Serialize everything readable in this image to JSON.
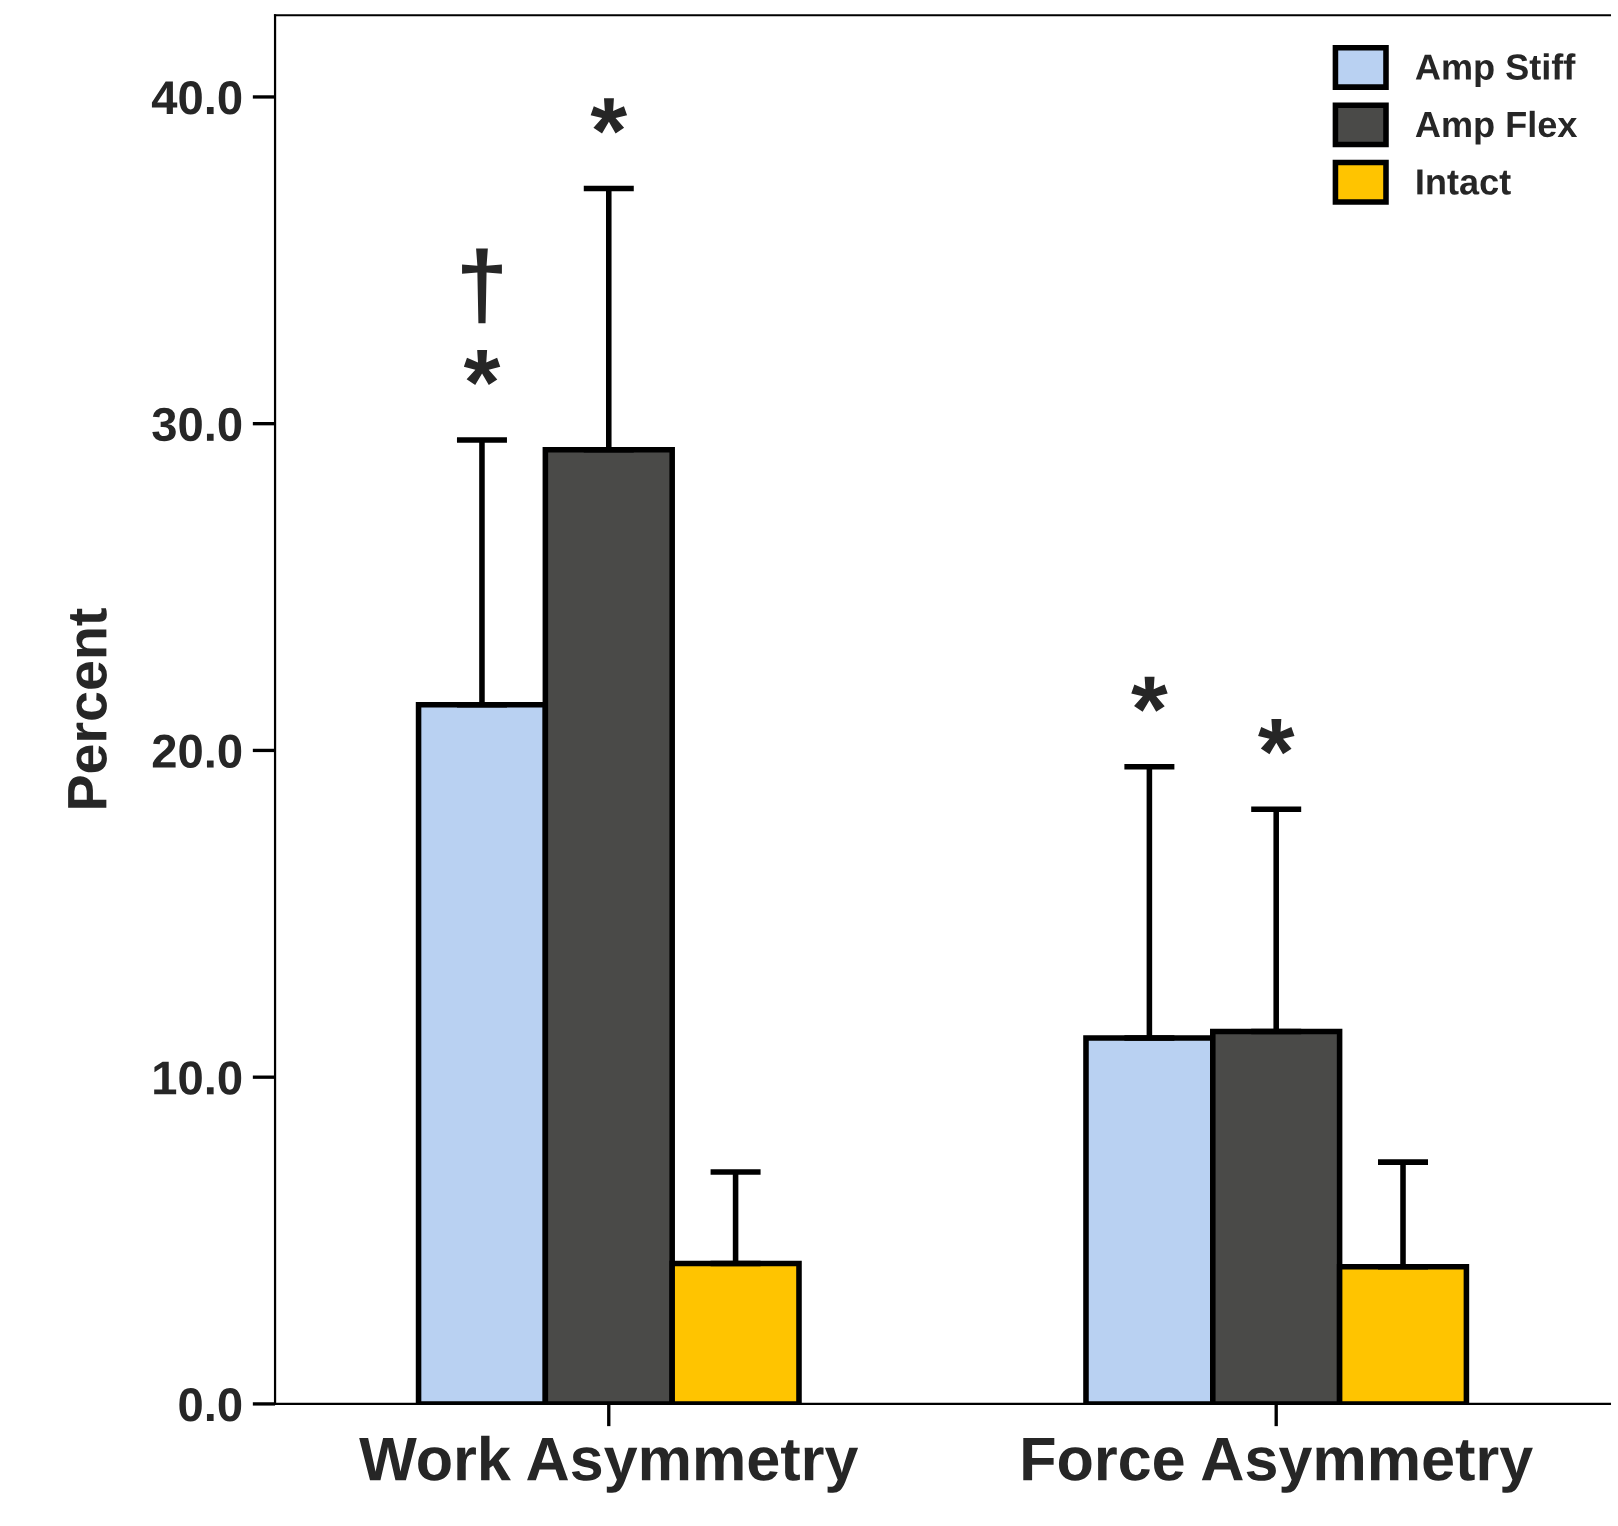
{
  "chart_data": {
    "type": "bar",
    "ylabel": "Percent",
    "categories": [
      "Work Asymmetry",
      "Force Asymmetry"
    ],
    "series": [
      {
        "name": "Amp Stiff",
        "color": "#b9d1f2",
        "values": [
          21.4,
          11.2
        ],
        "errors": [
          [
            21.4,
            29.5
          ],
          [
            11.2,
            19.5
          ]
        ]
      },
      {
        "name": "Amp Flex",
        "color": "#4a4a48",
        "values": [
          29.2,
          11.4
        ],
        "errors": [
          [
            29.2,
            37.2
          ],
          [
            11.4,
            18.2
          ]
        ]
      },
      {
        "name": "Intact",
        "color": "#ffc400",
        "values": [
          4.3,
          4.2
        ],
        "errors": [
          [
            4.3,
            7.1
          ],
          [
            4.2,
            7.4
          ]
        ]
      }
    ],
    "annotations": [
      {
        "text": "*",
        "x": "Work Asymmetry",
        "y": 29.5
      },
      {
        "text": "†",
        "x": "Work Asymmetry",
        "y": 32.5
      },
      {
        "text": "*",
        "x": "Work Asymmetry",
        "y": 37.2
      },
      "*",
      {
        "text": "*",
        "x": "Force Asymmetry",
        "y": 18.2
      }
    ],
    "ylim": [
      0,
      42.5
    ],
    "yticks": [
      {
        "value": 0,
        "label": "0.0"
      },
      {
        "value": 10,
        "label": "10.0"
      },
      {
        "value": 20,
        "label": "20.0"
      },
      {
        "value": 30,
        "label": "30.0"
      },
      {
        "value": 40,
        "label": "40.0"
      }
    ],
    "legend": "top right",
    "grid": false
  }
}
